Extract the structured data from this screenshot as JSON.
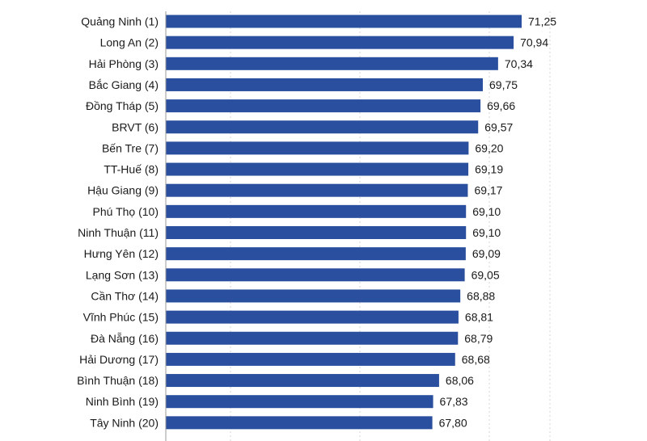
{
  "chart_data": {
    "type": "bar",
    "orientation": "horizontal",
    "categories": [
      "Quảng Ninh (1)",
      "Long An (2)",
      "Hải Phòng (3)",
      "Bắc Giang (4)",
      "Đồng Tháp (5)",
      "BRVT (6)",
      "Bến Tre (7)",
      "TT-Huế (8)",
      "Hậu Giang (9)",
      "Phú Thọ (10)",
      "Ninh Thuận (11)",
      "Hưng Yên (12)",
      "Lạng Sơn (13)",
      "Cần Thơ (14)",
      "Vĩnh Phúc (15)",
      "Đà Nẵng (16)",
      "Hải Dương (17)",
      "Bình Thuận (18)",
      "Ninh Bình (19)",
      "Tây Ninh (20)"
    ],
    "values": [
      71.25,
      70.94,
      70.34,
      69.75,
      69.66,
      69.57,
      69.2,
      69.19,
      69.17,
      69.1,
      69.1,
      69.09,
      69.05,
      68.88,
      68.81,
      68.79,
      68.68,
      68.06,
      67.83,
      67.8
    ],
    "value_labels": [
      "71,25",
      "70,94",
      "70,34",
      "69,75",
      "69,66",
      "69,57",
      "69,20",
      "69,19",
      "69,17",
      "69,10",
      "69,10",
      "69,09",
      "69,05",
      "68,88",
      "68,81",
      "68,79",
      "68,68",
      "68,06",
      "67,83",
      "67,80"
    ],
    "xlim": [
      57.5,
      72.5
    ],
    "gridlines": [
      60,
      65,
      70
    ],
    "grid": true,
    "title": "",
    "xlabel": "",
    "ylabel": "",
    "bar_color": "#2a4f9e",
    "grid_color": "#d6d6d6",
    "axis_color": "#9a9a9a"
  }
}
